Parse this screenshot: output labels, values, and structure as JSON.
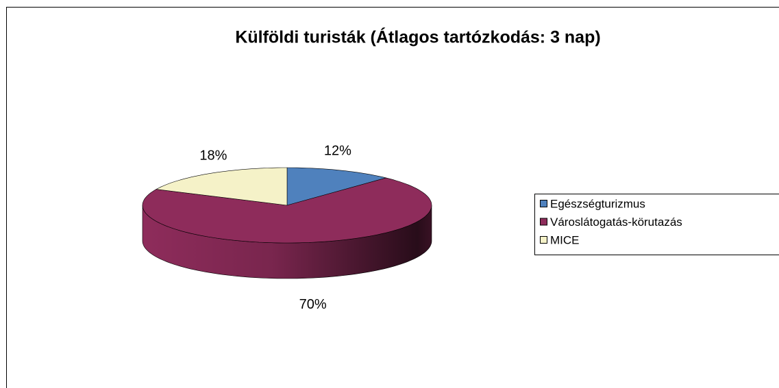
{
  "chart_data": {
    "type": "pie",
    "title": "Külföldi turisták (Átlagos tartózkodás: 3 nap)",
    "categories": [
      "Egészségturizmus",
      "Városlátogatás-körutazás",
      "MICE"
    ],
    "values": [
      12,
      70,
      18
    ],
    "value_labels": [
      "12%",
      "70%",
      "18%"
    ],
    "colors": [
      "#4f81bd",
      "#8e2c5b",
      "#f5f2c8"
    ],
    "legend": "right"
  }
}
